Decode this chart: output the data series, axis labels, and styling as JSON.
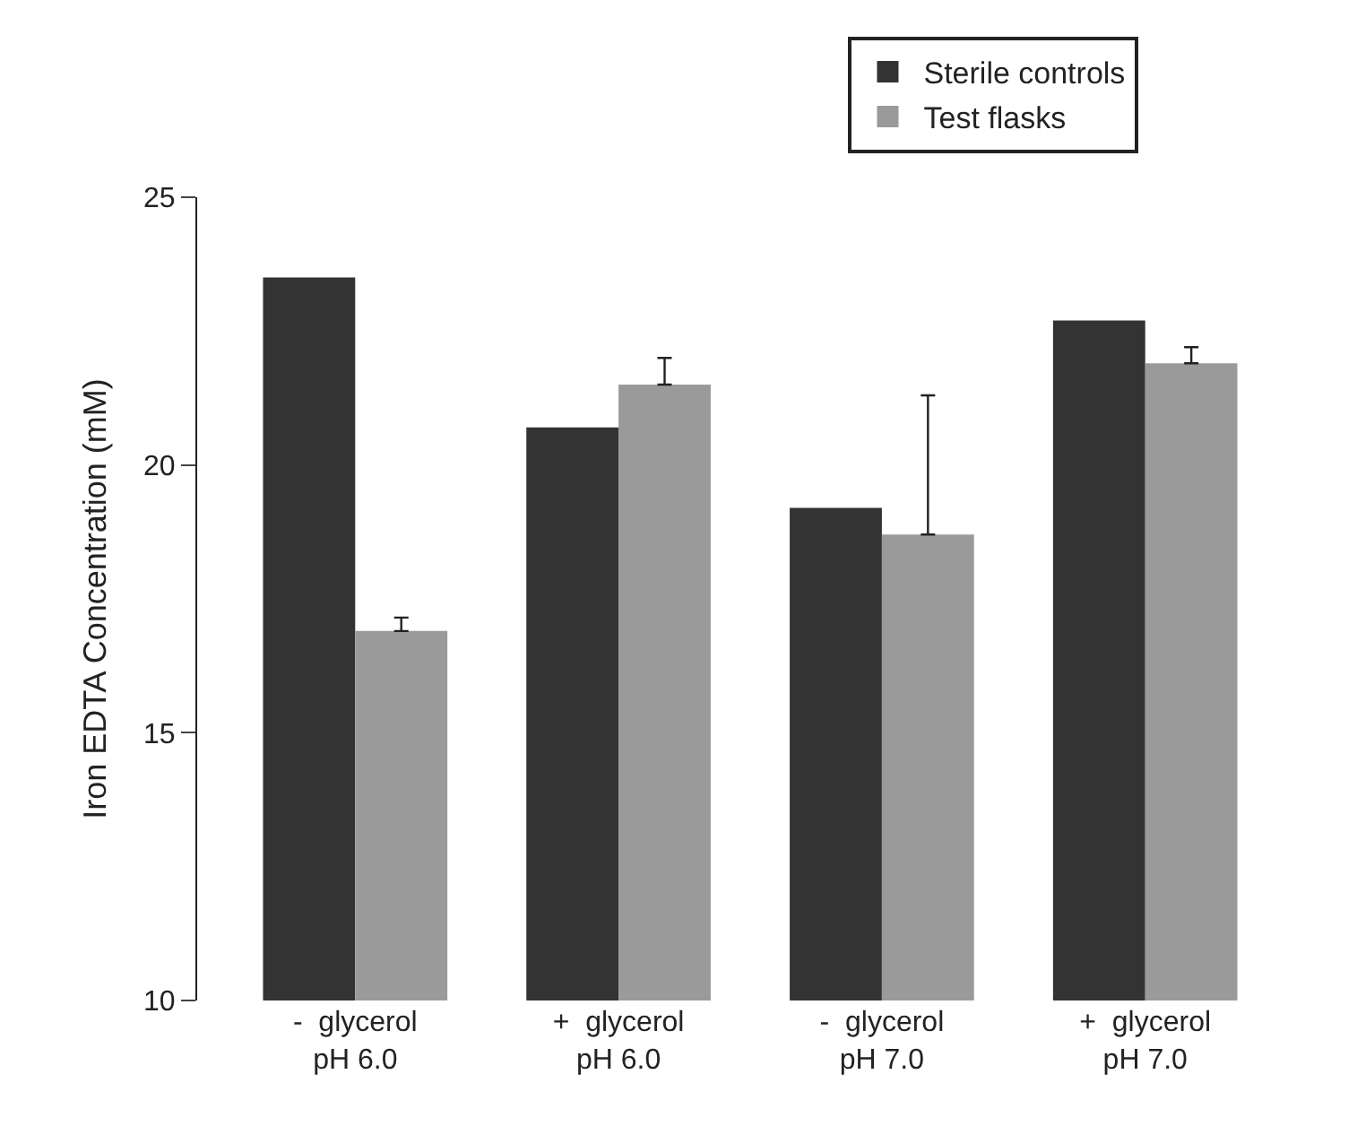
{
  "chart_data": {
    "type": "bar",
    "ylabel": "Iron EDTA Concentration (mM)",
    "categories": [
      "-  glycerol\npH 6.0",
      "+  glycerol\npH 6.0",
      "-  glycerol\npH 7.0",
      "+  glycerol\npH 7.0"
    ],
    "series": [
      {
        "name": "Sterile controls",
        "color": "#333333",
        "values": [
          23.5,
          20.7,
          19.2,
          22.7
        ]
      },
      {
        "name": "Test flasks",
        "color": "#9a9a9a",
        "values": [
          16.9,
          21.5,
          18.7,
          21.9
        ],
        "errors": [
          [
            16.9,
            17.15
          ],
          [
            21.5,
            22.0
          ],
          [
            18.7,
            21.3
          ],
          [
            21.9,
            22.2
          ]
        ]
      }
    ],
    "ylim": [
      10,
      25
    ],
    "yticks": [
      10,
      15,
      20,
      25
    ],
    "legend": "top right"
  }
}
